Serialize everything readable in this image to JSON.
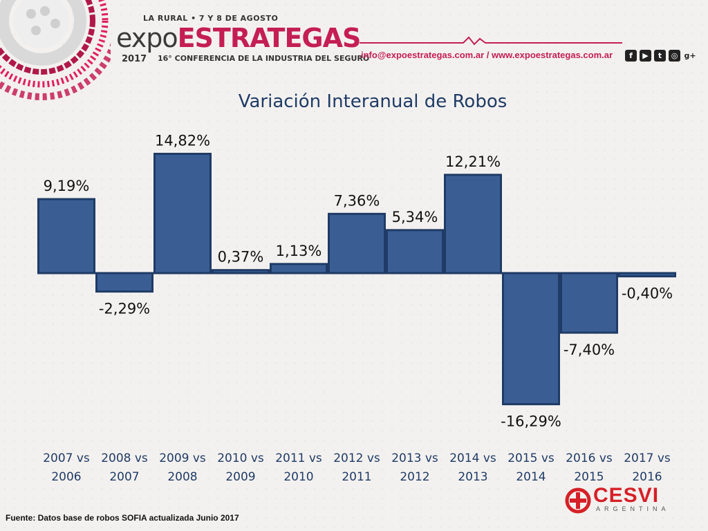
{
  "header": {
    "event_date": "LA RURAL • 7 Y 8 DE AGOSTO",
    "event_name_part1": "expo",
    "event_name_part2": "ESTRATEGAS",
    "event_year": "2017",
    "event_subtitle": "16° CONFERENCIA DE LA INDUSTRIA DEL SEGURO",
    "contact": "info@expoestrategas.com.ar / www.expoestrategas.com.ar",
    "social_icons": [
      "facebook-icon",
      "youtube-icon",
      "twitter-icon",
      "instagram-icon",
      "google-plus-icon"
    ],
    "social_glyphs": [
      "f",
      "▶",
      "t",
      "◎",
      "g+"
    ]
  },
  "colors": {
    "accent": "#c41e54",
    "bar": "#3a5e94",
    "bar_stroke": "#1f3b66",
    "title": "#1f3b66",
    "tick": "#1f3b66"
  },
  "chart_data": {
    "type": "bar",
    "title": "Variación Interanual de Robos",
    "categories": [
      [
        "2007 vs",
        "2006"
      ],
      [
        "2008 vs",
        "2007"
      ],
      [
        "2009 vs",
        "2008"
      ],
      [
        "2010 vs",
        "2009"
      ],
      [
        "2011 vs",
        "2010"
      ],
      [
        "2012 vs",
        "2011"
      ],
      [
        "2013 vs",
        "2012"
      ],
      [
        "2014 vs",
        "2013"
      ],
      [
        "2015 vs",
        "2014"
      ],
      [
        "2016 vs",
        "2015"
      ],
      [
        "2017 vs",
        "2016"
      ]
    ],
    "values": [
      9.19,
      -2.29,
      14.82,
      0.37,
      1.13,
      7.36,
      5.34,
      12.21,
      -16.29,
      -7.4,
      -0.4
    ],
    "data_labels": [
      "9,19%",
      "-2,29%",
      "14,82%",
      "0,37%",
      "1,13%",
      "7,36%",
      "5,34%",
      "12,21%",
      "-16,29%",
      "-7,40%",
      "-0,40%"
    ],
    "grid": false,
    "legend": "none"
  },
  "footer": {
    "source": "Fuente: Datos base de robos SOFIA actualizada Junio 2017",
    "logo_name": "CESVI",
    "logo_country": "ARGENTINA"
  }
}
